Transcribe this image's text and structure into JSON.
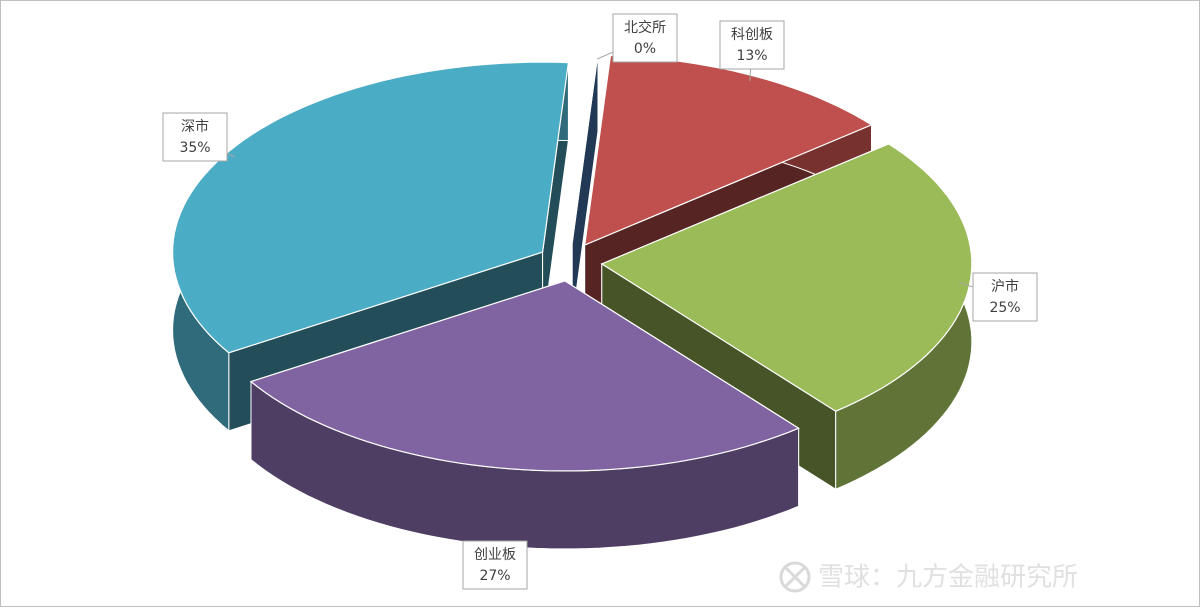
{
  "chart_data": {
    "type": "pie3d",
    "categories": [
      "北交所",
      "科创板",
      "沪市",
      "创业板",
      "深市"
    ],
    "values": [
      0,
      13,
      25,
      27,
      35
    ],
    "value_labels": [
      "0%",
      "13%",
      "25%",
      "27%",
      "35%"
    ],
    "colors": [
      "#4a7ebb",
      "#c0504d",
      "#9bbb59",
      "#8064a2",
      "#4bacc6"
    ]
  },
  "watermark": "雪球：九方金融研究所"
}
